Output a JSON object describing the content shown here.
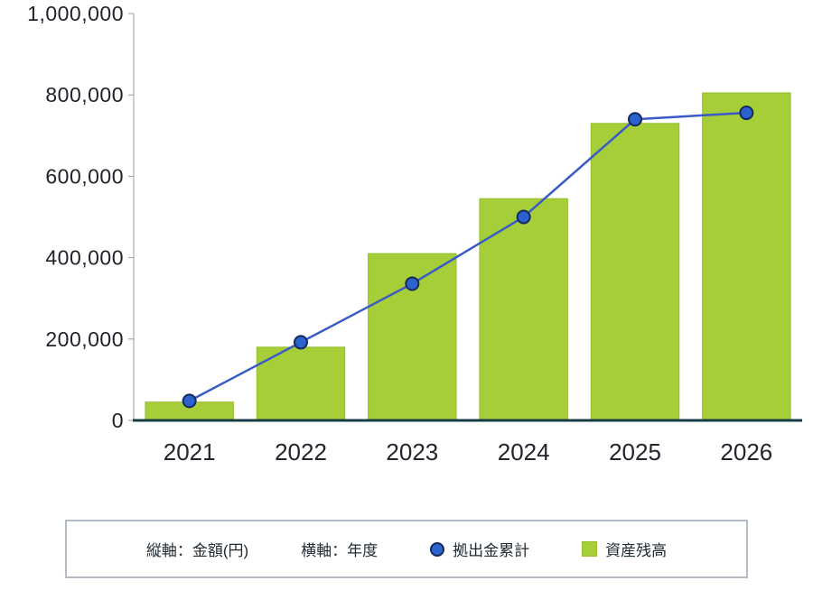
{
  "colors": {
    "bar_fill": "#a6ce39",
    "bar_border": "#95bd2e",
    "line": "#3a5bc7",
    "dot_fill": "#2b62cc",
    "dot_border": "#16295c",
    "x_axis": "#173c46",
    "y_axis": "#9b9b9b",
    "tick_text": "#20222c",
    "legend_border": "#b3bcc6",
    "legend_text": "#1f2a33"
  },
  "chart_data": {
    "type": "bar",
    "categories": [
      "2021",
      "2022",
      "2023",
      "2024",
      "2025",
      "2026"
    ],
    "series": [
      {
        "name": "拠出金累計",
        "type": "line",
        "values": [
          48000,
          192000,
          336000,
          500000,
          740000,
          756000
        ]
      },
      {
        "name": "資産残高",
        "type": "bar",
        "values": [
          45000,
          180000,
          410000,
          545000,
          730000,
          805000
        ]
      }
    ],
    "ylim": [
      0,
      1000000
    ],
    "yticks": [
      {
        "value": 0,
        "label": "0"
      },
      {
        "value": 200000,
        "label": "200,000"
      },
      {
        "value": 400000,
        "label": "400,000"
      },
      {
        "value": 600000,
        "label": "600,000"
      },
      {
        "value": 800000,
        "label": "800,000"
      },
      {
        "value": 1000000,
        "label": "1,000,000"
      }
    ],
    "ylabel": "金額(円)",
    "xlabel": "年度",
    "legend_position": "bottom",
    "grid": false
  },
  "legend": {
    "y_axis_label": "縦軸：金額(円)",
    "x_axis_label": "横軸：年度",
    "line_series_label": "拠出金累計",
    "bar_series_label": "資産残高"
  }
}
